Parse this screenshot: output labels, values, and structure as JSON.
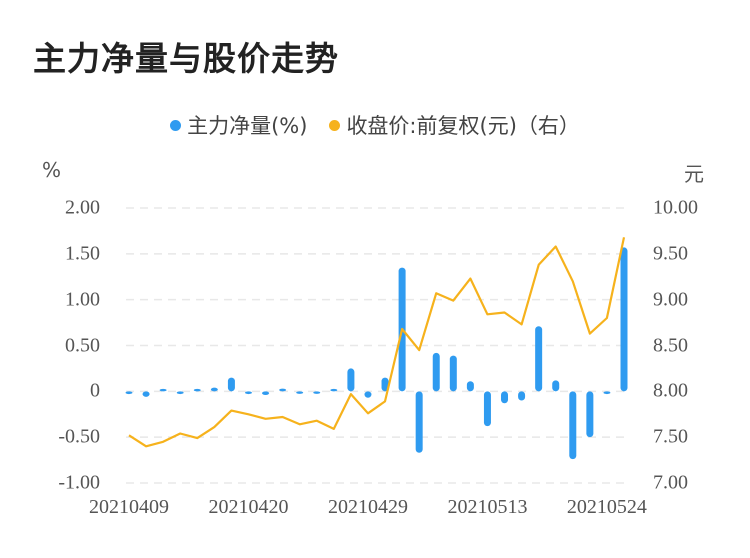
{
  "title": "主力净量与股价走势",
  "legend": [
    {
      "label": "主力净量(%)",
      "color": "#2f9bf0"
    },
    {
      "label": "收盘价:前复权(元)（右）",
      "color": "#f6b21c"
    }
  ],
  "axes": {
    "left_unit": "%",
    "right_unit": "元",
    "left_ticks": [
      "2.00",
      "1.50",
      "1.00",
      "0.50",
      "0",
      "-0.50",
      "-1.00"
    ],
    "right_ticks": [
      "10.00",
      "9.50",
      "9.00",
      "8.50",
      "8.00",
      "7.50",
      "7.00"
    ],
    "x_ticks": [
      "20210409",
      "20210420",
      "20210429",
      "20210513",
      "20210524"
    ]
  },
  "chart_data": {
    "type": "bar+line",
    "title": "主力净量与股价走势",
    "xlabel": "",
    "ylabel": "%",
    "ylabel_right": "元",
    "ylim": [
      -1.0,
      2.0
    ],
    "ylim_right": [
      7.0,
      10.0
    ],
    "grid": true,
    "legend_position": "top",
    "x_tick_labels": [
      "20210409",
      "20210420",
      "20210429",
      "20210513",
      "20210524"
    ],
    "x_tick_indices": [
      0,
      7,
      14,
      21,
      28
    ],
    "series": [
      {
        "name": "主力净量(%)",
        "type": "bar",
        "axis": "left",
        "color": "#2f9bf0",
        "values": [
          -0.03,
          -0.06,
          0.01,
          -0.03,
          0.01,
          0.04,
          0.15,
          -0.03,
          -0.04,
          0.03,
          -0.02,
          -0.02,
          0.01,
          0.25,
          -0.07,
          0.15,
          1.35,
          -0.67,
          0.42,
          0.39,
          0.11,
          -0.38,
          -0.13,
          -0.1,
          0.71,
          0.12,
          -0.74,
          -0.5,
          -0.03,
          1.57
        ]
      },
      {
        "name": "收盘价:前复权(元)（右）",
        "type": "line",
        "axis": "right",
        "color": "#f6b21c",
        "values": [
          7.52,
          7.4,
          7.45,
          7.54,
          7.49,
          7.61,
          7.79,
          7.75,
          7.7,
          7.72,
          7.64,
          7.68,
          7.59,
          7.97,
          7.76,
          7.89,
          8.68,
          8.45,
          9.07,
          8.99,
          9.23,
          8.84,
          8.86,
          8.73,
          9.38,
          9.58,
          9.2,
          8.63,
          8.8,
          9.68
        ]
      }
    ]
  }
}
